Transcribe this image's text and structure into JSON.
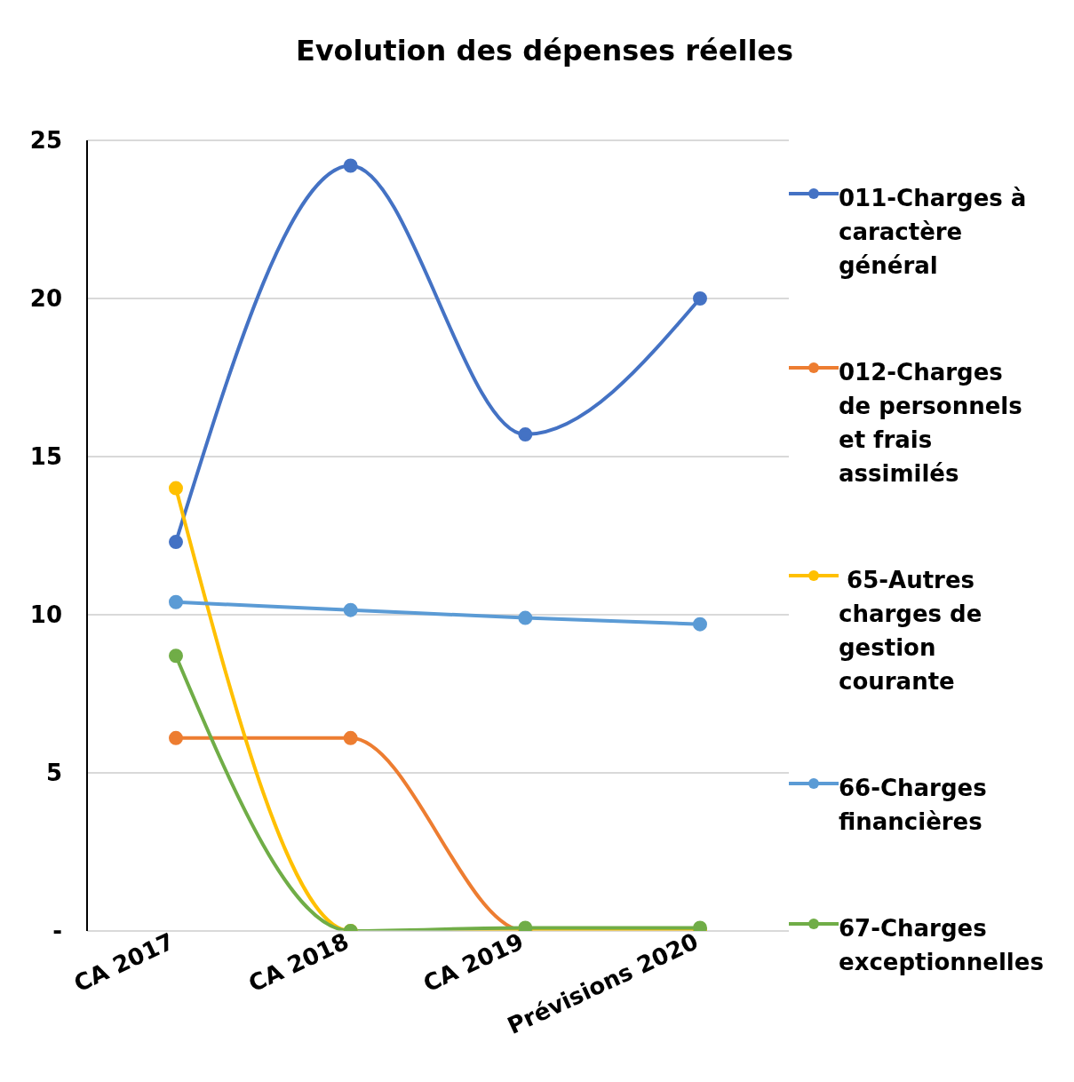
{
  "chart_data": {
    "type": "line",
    "title": "Evolution des dépenses réelles",
    "categories": [
      "CA 2017",
      "CA 2018",
      "CA 2019",
      "Prévisions 2020"
    ],
    "series": [
      {
        "name": "011-Charges à caractère général",
        "color": "#4472c4",
        "values": [
          12.3,
          24.2,
          15.7,
          20
        ]
      },
      {
        "name": "012-Charges de personnels et frais assimilés",
        "color": "#ed7d31",
        "values": [
          6.1,
          6.1,
          0,
          0
        ]
      },
      {
        "name": " 65-Autres charges de gestion courante",
        "color": "#ffc000",
        "values": [
          14,
          0,
          0,
          0
        ]
      },
      {
        "name": "66-Charges financières",
        "color": "#5b9bd5",
        "values": [
          10.4,
          10.15,
          9.9,
          9.7
        ]
      },
      {
        "name": "67-Charges exceptionnelles",
        "color": "#70ad47",
        "values": [
          8.7,
          0,
          0.1,
          0.1
        ]
      }
    ],
    "ylim": [
      0,
      25
    ],
    "yticks": [
      {
        "value": 0,
        "label": "-"
      },
      5,
      10,
      15,
      20,
      25
    ],
    "grid": "y",
    "legend": "right",
    "marker": "circle",
    "line_style": "solid"
  }
}
